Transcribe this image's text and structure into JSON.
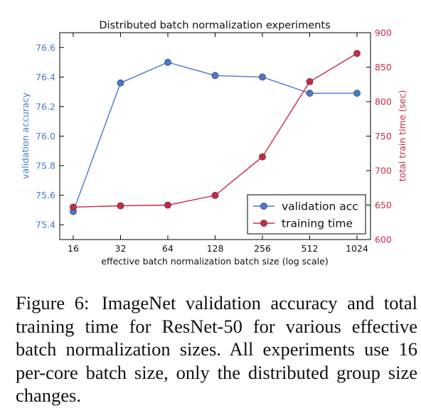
{
  "chart_data": {
    "type": "line",
    "title": "Distributed batch normalization experiments",
    "xlabel": "effective batch normalization batch size (log scale)",
    "x_scale": "log2",
    "x": [
      16,
      32,
      64,
      128,
      256,
      512,
      1024
    ],
    "x_tick_labels": [
      "16",
      "32",
      "64",
      "128",
      "256",
      "512",
      "1024"
    ],
    "left_axis": {
      "label": "validation accuracy",
      "color": "#4a77cc",
      "lim": [
        75.3,
        76.7
      ],
      "ticks": [
        75.4,
        75.6,
        75.8,
        76.0,
        76.2,
        76.4,
        76.6
      ],
      "tick_labels": [
        "75.4",
        "75.6",
        "75.8",
        "76.0",
        "76.2",
        "76.4",
        "76.6"
      ]
    },
    "right_axis": {
      "label": "total train time (sec)",
      "color": "#c82a45",
      "lim": [
        600,
        900
      ],
      "ticks": [
        600,
        650,
        700,
        750,
        800,
        850,
        900
      ],
      "tick_labels": [
        "600",
        "650",
        "700",
        "750",
        "800",
        "850",
        "900"
      ]
    },
    "series": [
      {
        "name": "validation acc",
        "axis": "left",
        "color": "#4a77cc",
        "values": [
          75.49,
          76.36,
          76.5,
          76.41,
          76.4,
          76.29,
          76.29
        ]
      },
      {
        "name": "training time",
        "axis": "right",
        "color": "#c82a45",
        "values": [
          647,
          649,
          650,
          664,
          720,
          829,
          870
        ]
      }
    ],
    "grid": false,
    "legend_position": "lower-right"
  },
  "caption": {
    "label": "Figure 6:",
    "text": "ImageNet validation accuracy and total training time for ResNet-50 for various effective batch normalization sizes. All experiments use 16 per-core batch size, only the distributed group size changes."
  }
}
